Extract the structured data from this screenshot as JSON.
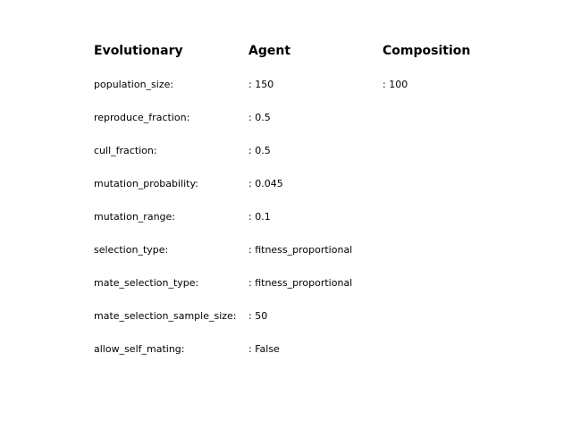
{
  "headers": {
    "evolutionary": "Evolutionary",
    "agent": "Agent",
    "composition": "Composition"
  },
  "rows": [
    {
      "key": "population_size:",
      "agent": ": 150",
      "composition": ": 100"
    },
    {
      "key": "reproduce_fraction:",
      "agent": ": 0.5",
      "composition": ""
    },
    {
      "key": "cull_fraction:",
      "agent": ": 0.5",
      "composition": ""
    },
    {
      "key": "mutation_probability:",
      "agent": ": 0.045",
      "composition": ""
    },
    {
      "key": "mutation_range:",
      "agent": ": 0.1",
      "composition": ""
    },
    {
      "key": "selection_type:",
      "agent": ": fitness_proportional",
      "composition": ""
    },
    {
      "key": "mate_selection_type:",
      "agent": ": fitness_proportional",
      "composition": ""
    },
    {
      "key": "mate_selection_sample_size:",
      "agent": ": 50",
      "composition": ""
    },
    {
      "key": "allow_self_mating:",
      "agent": ": False",
      "composition": ""
    }
  ]
}
